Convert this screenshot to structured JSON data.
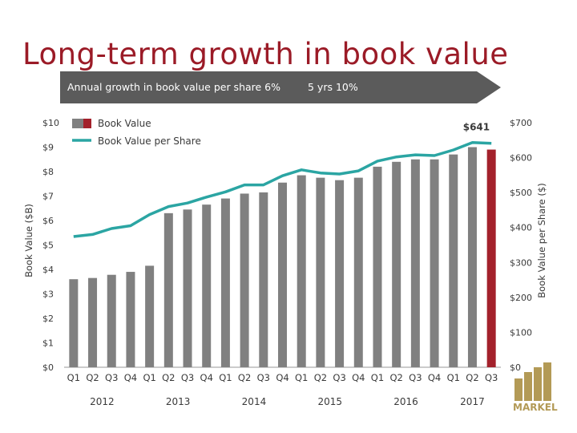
{
  "page": {
    "title": "Long-term growth in book value",
    "banner_left": "Annual growth in book value per share 6%",
    "banner_right": "5 yrs  10%"
  },
  "colors": {
    "title": "#9b1b27",
    "bar": "#808080",
    "bar_highlight": "#a3212b",
    "line": "#2ba5a3",
    "banner": "#5b5b5b"
  },
  "chart_data": {
    "type": "bar",
    "title": "Long-term growth in book value",
    "categories": [
      "Q1 2012",
      "Q2 2012",
      "Q3 2012",
      "Q4 2012",
      "Q1 2013",
      "Q2 2013",
      "Q3 2013",
      "Q4 2013",
      "Q1 2014",
      "Q2 2014",
      "Q3 2014",
      "Q4 2014",
      "Q1 2015",
      "Q2 2015",
      "Q3 2015",
      "Q4 2015",
      "Q1 2016",
      "Q2 2016",
      "Q3 2016",
      "Q4 2016",
      "Q1 2017",
      "Q2 2017",
      "Q3 2017"
    ],
    "quarter_labels": [
      "Q1",
      "Q2",
      "Q3",
      "Q4",
      "Q1",
      "Q2",
      "Q3",
      "Q4",
      "Q1",
      "Q2",
      "Q3",
      "Q4",
      "Q1",
      "Q2",
      "Q3",
      "Q4",
      "Q1",
      "Q2",
      "Q3",
      "Q4",
      "Q1",
      "Q2",
      "Q3"
    ],
    "year_labels": [
      "2012",
      "2013",
      "2014",
      "2015",
      "2016",
      "2017"
    ],
    "series": [
      {
        "name": "Book Value",
        "axis": "left",
        "type": "bar",
        "values": [
          3.6,
          3.65,
          3.78,
          3.9,
          4.15,
          6.3,
          6.45,
          6.65,
          6.9,
          7.1,
          7.15,
          7.55,
          7.85,
          7.75,
          7.65,
          7.75,
          8.2,
          8.4,
          8.5,
          8.5,
          8.7,
          9.0,
          8.9
        ],
        "highlight_last": true
      },
      {
        "name": "Book Value per Share",
        "axis": "right",
        "type": "line",
        "values": [
          374,
          380,
          397,
          405,
          437,
          460,
          470,
          487,
          502,
          522,
          522,
          548,
          565,
          556,
          553,
          562,
          590,
          602,
          608,
          606,
          622,
          643,
          641
        ]
      }
    ],
    "ylim_left": [
      0,
      10
    ],
    "ylim_right": [
      0,
      700
    ],
    "yticks_left": [
      "$0",
      "$1",
      "$2",
      "$3",
      "$4",
      "$5",
      "$6",
      "$7",
      "$8",
      "$9",
      "$10"
    ],
    "yticks_right": [
      "$0",
      "$100",
      "$200",
      "$300",
      "$400",
      "$500",
      "$600",
      "$700"
    ],
    "ylabel_left": "Book Value ($B)",
    "ylabel_right": "Book Value per Share ($)",
    "annotation": "$641",
    "legend": [
      {
        "label": "Book Value",
        "symbol": "bar"
      },
      {
        "label": "Book Value per Share",
        "symbol": "line"
      }
    ],
    "legend_position": "top-left"
  },
  "logo": {
    "text": "MARKEL"
  }
}
